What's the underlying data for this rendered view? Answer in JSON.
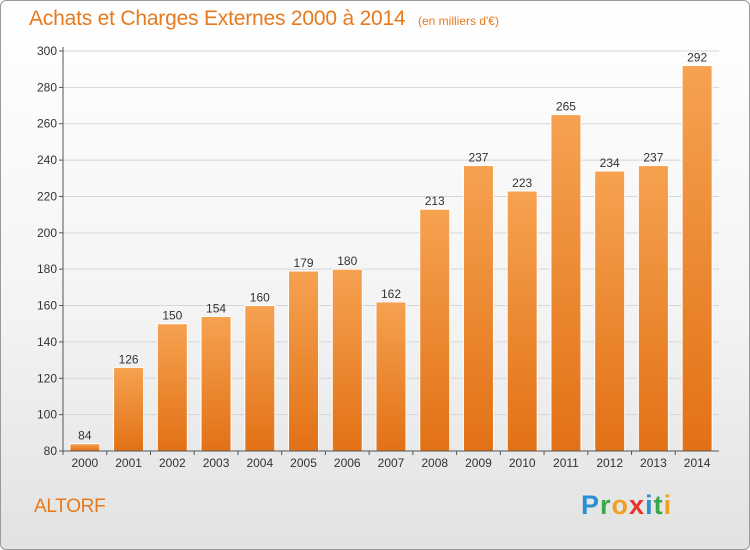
{
  "header": {
    "title": "Achats et Charges Externes 2000 à 2014",
    "subtitle": "(en milliers d'€)"
  },
  "footer": {
    "commune": "ALTORF",
    "brand_letters": [
      {
        "char": "P",
        "color": "#2a8fd4"
      },
      {
        "char": "r",
        "color": "#3aa748"
      },
      {
        "char": "o",
        "color": "#f0a020"
      },
      {
        "char": "x",
        "color": "#e8322a"
      },
      {
        "char": "i",
        "color": "#2a8fd4"
      },
      {
        "char": "t",
        "color": "#3aa748"
      },
      {
        "char": "i",
        "color": "#f0a020"
      }
    ]
  },
  "colors": {
    "accent": "#e67a1c",
    "bar_top": "#f6a250",
    "bar_bottom": "#e27116"
  },
  "chart_data": {
    "type": "bar",
    "title": "Achats et Charges Externes 2000 à 2014",
    "subtitle": "(en milliers d'€)",
    "xlabel": "",
    "ylabel": "",
    "categories": [
      "2000",
      "2001",
      "2002",
      "2003",
      "2004",
      "2005",
      "2006",
      "2007",
      "2008",
      "2009",
      "2010",
      "2011",
      "2012",
      "2013",
      "2014"
    ],
    "values": [
      84,
      126,
      150,
      154,
      160,
      179,
      180,
      162,
      213,
      237,
      223,
      265,
      234,
      237,
      292
    ],
    "ylim": [
      80,
      300
    ],
    "yticks": [
      80,
      100,
      120,
      140,
      160,
      180,
      200,
      220,
      240,
      260,
      280,
      300
    ],
    "grid": true,
    "legend": "none"
  }
}
